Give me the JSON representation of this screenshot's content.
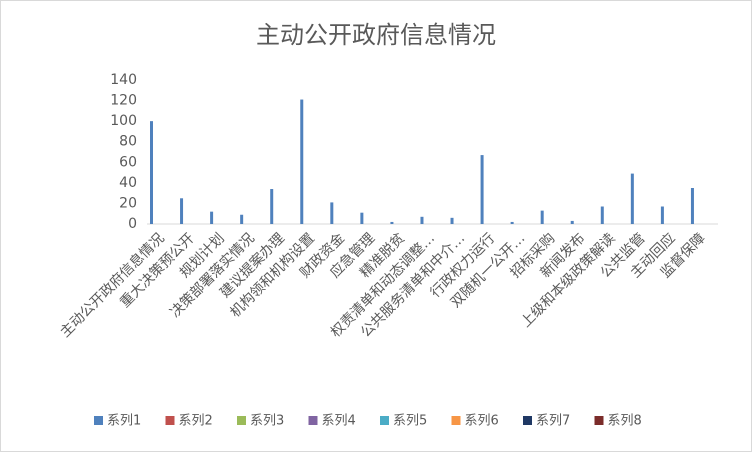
{
  "chart_data": {
    "type": "bar",
    "title": "主动公开政府信息情况",
    "categories": [
      "主动公开政府信息情况",
      "重大决策预公开",
      "规划计划",
      "决策部署落实情况",
      "建议提案办理",
      "机构领和机构设置",
      "财政资金",
      "应急管理",
      "精准脱贫",
      "权责清单和动态调整…",
      "公共服务清单和中介…",
      "行政权力运行",
      "双随机一公开…",
      "招标采购",
      "新闻发布",
      "上级和本级政策解读",
      "公共监管",
      "主动回应",
      "监督保障"
    ],
    "series": [
      {
        "name": "系列1",
        "color": "#4f81bd",
        "values": [
          100,
          25,
          12,
          9,
          34,
          121,
          21,
          11,
          2,
          7,
          6,
          67,
          2,
          13,
          3,
          17,
          49,
          17,
          35
        ]
      },
      {
        "name": "系列2",
        "color": "#c0504d",
        "values": [
          null,
          null,
          null,
          null,
          null,
          null,
          null,
          null,
          null,
          null,
          null,
          null,
          null,
          null,
          null,
          null,
          null,
          null,
          null
        ]
      },
      {
        "name": "系列3",
        "color": "#9bbb59",
        "values": [
          null,
          null,
          null,
          null,
          null,
          null,
          null,
          null,
          null,
          null,
          null,
          null,
          null,
          null,
          null,
          null,
          null,
          null,
          null
        ]
      },
      {
        "name": "系列4",
        "color": "#8064a2",
        "values": [
          null,
          null,
          null,
          null,
          null,
          null,
          null,
          null,
          null,
          null,
          null,
          null,
          null,
          null,
          null,
          null,
          null,
          null,
          null
        ]
      },
      {
        "name": "系列5",
        "color": "#4bacc6",
        "values": [
          null,
          null,
          null,
          null,
          null,
          null,
          null,
          null,
          null,
          null,
          null,
          null,
          null,
          null,
          null,
          null,
          null,
          null,
          null
        ]
      },
      {
        "name": "系列6",
        "color": "#f79646",
        "values": [
          null,
          null,
          null,
          null,
          null,
          null,
          null,
          null,
          null,
          null,
          null,
          null,
          null,
          null,
          null,
          null,
          null,
          null,
          null
        ]
      },
      {
        "name": "系列7",
        "color": "#1f3864",
        "values": [
          null,
          null,
          null,
          null,
          null,
          null,
          null,
          null,
          null,
          null,
          null,
          null,
          null,
          null,
          null,
          null,
          null,
          null,
          null
        ]
      },
      {
        "name": "系列8",
        "color": "#7b2c2a",
        "values": [
          null,
          null,
          null,
          null,
          null,
          null,
          null,
          null,
          null,
          null,
          null,
          null,
          null,
          null,
          null,
          null,
          null,
          null,
          null
        ]
      }
    ],
    "ylim": [
      0,
      140
    ],
    "yticks": [
      0,
      20,
      40,
      60,
      80,
      100,
      120,
      140
    ],
    "grid": false,
    "legend": "bottom"
  }
}
